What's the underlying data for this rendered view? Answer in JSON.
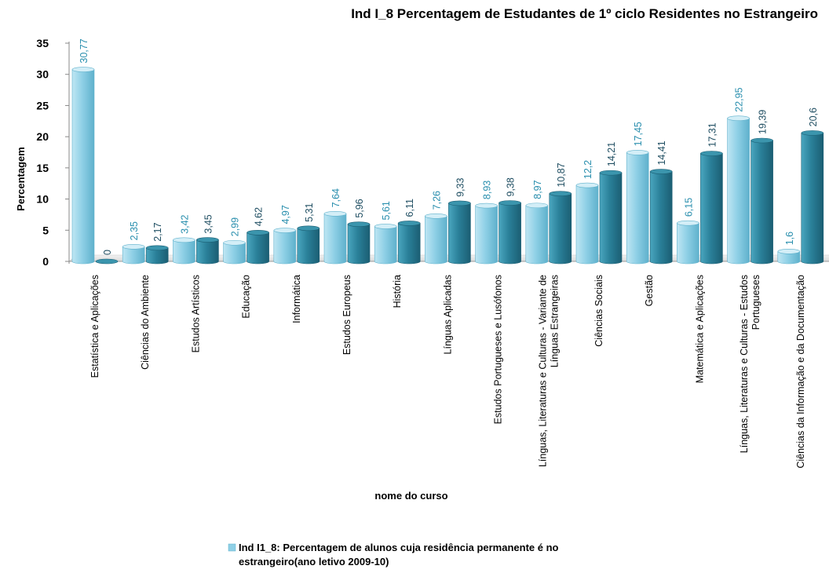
{
  "chart_data": {
    "type": "bar",
    "title": "Ind I_8 Percentagem de Estudantes de 1º ciclo Residentes no Estrangeiro",
    "xlabel": "nome do curso",
    "ylabel": "Percentagem",
    "ylim": [
      0,
      35
    ],
    "yticks": [
      "0",
      "5",
      "10",
      "15",
      "20",
      "25",
      "30",
      "35"
    ],
    "grid": false,
    "legend_position": "bottom",
    "colors": {
      "light": "#8fd0e6",
      "dark": "#2a8099",
      "light_label": "#2a8fae",
      "dark_label": "#1f4e62"
    },
    "bars": [
      {
        "value": 30.77,
        "label": "30,77",
        "shade": "light"
      },
      {
        "value": 0,
        "label": "0",
        "shade": "dark"
      },
      {
        "value": 2.35,
        "label": "2,35",
        "shade": "light"
      },
      {
        "value": 2.17,
        "label": "2,17",
        "shade": "dark"
      },
      {
        "value": 3.42,
        "label": "3,42",
        "shade": "light"
      },
      {
        "value": 3.45,
        "label": "3,45",
        "shade": "dark"
      },
      {
        "value": 2.99,
        "label": "2,99",
        "shade": "light"
      },
      {
        "value": 4.62,
        "label": "4,62",
        "shade": "dark"
      },
      {
        "value": 4.97,
        "label": "4,97",
        "shade": "light"
      },
      {
        "value": 5.31,
        "label": "5,31",
        "shade": "dark"
      },
      {
        "value": 7.64,
        "label": "7,64",
        "shade": "light"
      },
      {
        "value": 5.96,
        "label": "5,96",
        "shade": "dark"
      },
      {
        "value": 5.61,
        "label": "5,61",
        "shade": "light"
      },
      {
        "value": 6.11,
        "label": "6,11",
        "shade": "dark"
      },
      {
        "value": 7.26,
        "label": "7,26",
        "shade": "light"
      },
      {
        "value": 9.33,
        "label": "9,33",
        "shade": "dark"
      },
      {
        "value": 8.93,
        "label": "8,93",
        "shade": "light"
      },
      {
        "value": 9.38,
        "label": "9,38",
        "shade": "dark"
      },
      {
        "value": 8.97,
        "label": "8,97",
        "shade": "light"
      },
      {
        "value": 10.87,
        "label": "10,87",
        "shade": "dark"
      },
      {
        "value": 12.2,
        "label": "12,2",
        "shade": "light"
      },
      {
        "value": 14.21,
        "label": "14,21",
        "shade": "dark"
      },
      {
        "value": 17.45,
        "label": "17,45",
        "shade": "light"
      },
      {
        "value": 14.41,
        "label": "14,41",
        "shade": "dark"
      },
      {
        "value": 6.15,
        "label": "6,15",
        "shade": "light"
      },
      {
        "value": 17.31,
        "label": "17,31",
        "shade": "dark"
      },
      {
        "value": 22.95,
        "label": "22,95",
        "shade": "light"
      },
      {
        "value": 19.39,
        "label": "19,39",
        "shade": "dark"
      },
      {
        "value": 1.6,
        "label": "1,6",
        "shade": "light"
      },
      {
        "value": 20.6,
        "label": "20,6",
        "shade": "dark"
      }
    ],
    "categories": [
      [
        "Estatística e Aplicações"
      ],
      [
        "Ciências do Ambiente"
      ],
      [
        "Estudos Artísticos"
      ],
      [
        "Educação"
      ],
      [
        "Informática"
      ],
      [
        "Estudos Europeus"
      ],
      [
        "História"
      ],
      [
        "Línguas Aplicadas"
      ],
      [
        "Estudos Portugueses e Lusófonos"
      ],
      [
        "Línguas, Literaturas e Culturas - Variante de",
        "Línguas Estrangeiras"
      ],
      [
        "Ciências Sociais"
      ],
      [
        "Gestão"
      ],
      [
        "Matemática e Aplicações"
      ],
      [
        "Línguas, Literaturas e Culturas - Estudos",
        "Portugueses"
      ],
      [
        "Ciências da Informação e da Documentação"
      ]
    ],
    "legend": [
      "Ind I1_8: Percentagem de alunos cuja residência permanente é no",
      "estrangeiro(ano letivo 2009-10)"
    ]
  }
}
